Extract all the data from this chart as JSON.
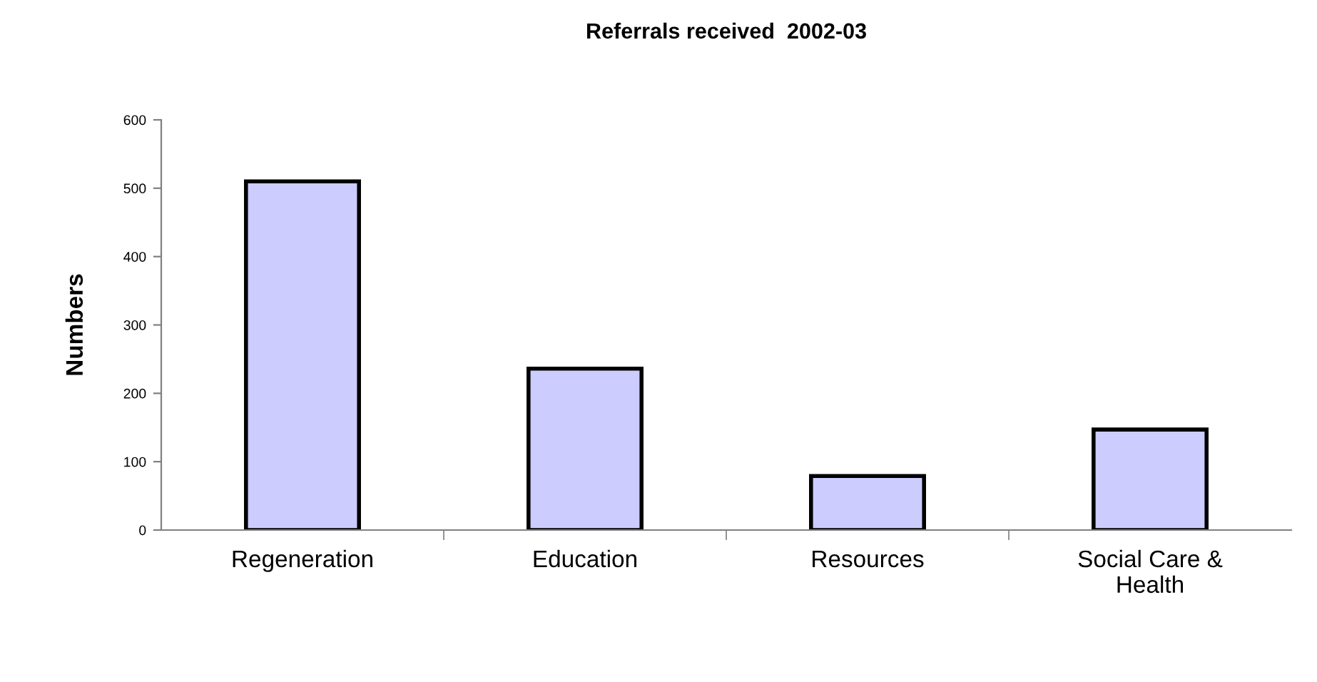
{
  "chart_data": {
    "type": "bar",
    "title": "Referrals received  2002-03",
    "ylabel": "Numbers",
    "categories": [
      "Regeneration",
      "Education",
      "Resources",
      "Social Care &\nHealth"
    ],
    "values": [
      510,
      236,
      79,
      147
    ],
    "color": "#ccccff",
    "ylim": [
      0,
      600
    ],
    "yticks": [
      0,
      100,
      200,
      300,
      400,
      500,
      600
    ],
    "grid": false,
    "legend": false
  }
}
